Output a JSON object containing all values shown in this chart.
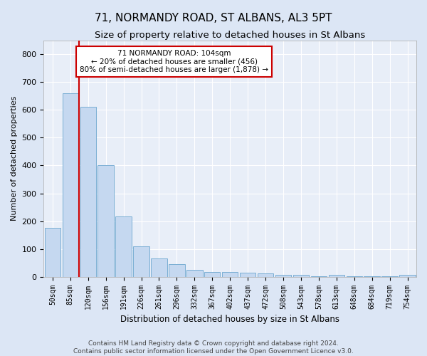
{
  "title": "71, NORMANDY ROAD, ST ALBANS, AL3 5PT",
  "subtitle": "Size of property relative to detached houses in St Albans",
  "xlabel": "Distribution of detached houses by size in St Albans",
  "ylabel": "Number of detached properties",
  "categories": [
    "50sqm",
    "85sqm",
    "120sqm",
    "156sqm",
    "191sqm",
    "226sqm",
    "261sqm",
    "296sqm",
    "332sqm",
    "367sqm",
    "402sqm",
    "437sqm",
    "472sqm",
    "508sqm",
    "543sqm",
    "578sqm",
    "613sqm",
    "648sqm",
    "684sqm",
    "719sqm",
    "754sqm"
  ],
  "bar_heights": [
    175,
    660,
    610,
    400,
    218,
    110,
    65,
    45,
    25,
    17,
    17,
    14,
    12,
    7,
    7,
    1,
    7,
    1,
    1,
    1,
    7
  ],
  "bar_color": "#c5d8f0",
  "bar_edge_color": "#7aaed4",
  "vline_color": "#cc0000",
  "annotation_line1": "71 NORMANDY ROAD: 104sqm",
  "annotation_line2": "← 20% of detached houses are smaller (456)",
  "annotation_line3": "80% of semi-detached houses are larger (1,878) →",
  "annotation_box_facecolor": "#ffffff",
  "annotation_box_edgecolor": "#cc0000",
  "ylim": [
    0,
    850
  ],
  "yticks": [
    0,
    100,
    200,
    300,
    400,
    500,
    600,
    700,
    800
  ],
  "background_color": "#dce6f5",
  "plot_bg_color": "#e8eef8",
  "grid_color": "#ffffff",
  "footer_line1": "Contains HM Land Registry data © Crown copyright and database right 2024.",
  "footer_line2": "Contains public sector information licensed under the Open Government Licence v3.0.",
  "title_fontsize": 11,
  "subtitle_fontsize": 9.5,
  "xlabel_fontsize": 8.5,
  "ylabel_fontsize": 8,
  "tick_fontsize": 7,
  "annotation_fontsize": 7.5,
  "footer_fontsize": 6.5
}
